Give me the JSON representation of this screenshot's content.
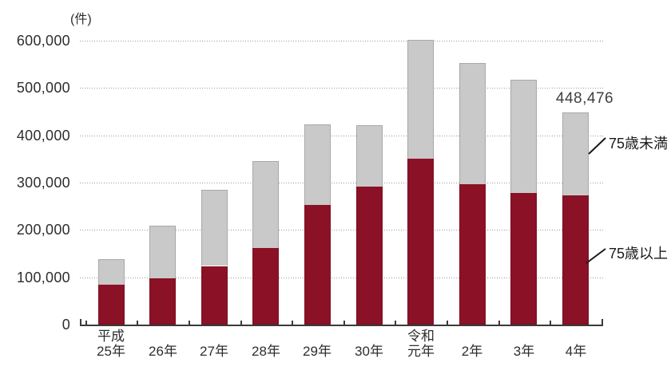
{
  "chart_data": {
    "type": "bar",
    "stacked": true,
    "title": "",
    "unit_label": "(件)",
    "xlabel": "",
    "ylabel": "",
    "ylim": [
      0,
      600000
    ],
    "ytick_interval": 100000,
    "ytick_labels": [
      "0",
      "100,000",
      "200,000",
      "300,000",
      "400,000",
      "500,000",
      "600,000"
    ],
    "grid": "horizontal-dotted",
    "legend_position": "right-callouts",
    "categories": [
      {
        "era": "平成",
        "year": "25年"
      },
      {
        "era": "",
        "year": "26年"
      },
      {
        "era": "",
        "year": "27年"
      },
      {
        "era": "",
        "year": "28年"
      },
      {
        "era": "",
        "year": "29年"
      },
      {
        "era": "",
        "year": "30年"
      },
      {
        "era": "令和",
        "year": "元年"
      },
      {
        "era": "",
        "year": "2年"
      },
      {
        "era": "",
        "year": "3年"
      },
      {
        "era": "",
        "year": "4年"
      }
    ],
    "series": [
      {
        "name": "75歳以上",
        "color": "#8b1126",
        "values": [
          84897,
          97157,
          123913,
          162341,
          252677,
          292089,
          350428,
          297452,
          278785,
          273206
        ]
      },
      {
        "name": "75歳未満",
        "color": "#c9c9c9",
        "values": [
          53040,
          111257,
          161601,
          182972,
          171123,
          129101,
          250594,
          254929,
          238255,
          175270
        ]
      }
    ],
    "totals": [
      137937,
      208414,
      285514,
      345313,
      423800,
      421190,
      601022,
      552381,
      517040,
      448476
    ],
    "annotation": {
      "text": "448,476",
      "category_index": 9
    },
    "callouts": {
      "under75": {
        "label": "75歳未満"
      },
      "over75": {
        "label": "75歳以上"
      }
    },
    "colors": {
      "over75_fill": "#8b1126",
      "under75_fill": "#c9c9c9",
      "under75_border": "#a8a8a8",
      "axis": "#3a3a3a",
      "grid": "#999999",
      "text": "#2e2e2e"
    }
  }
}
